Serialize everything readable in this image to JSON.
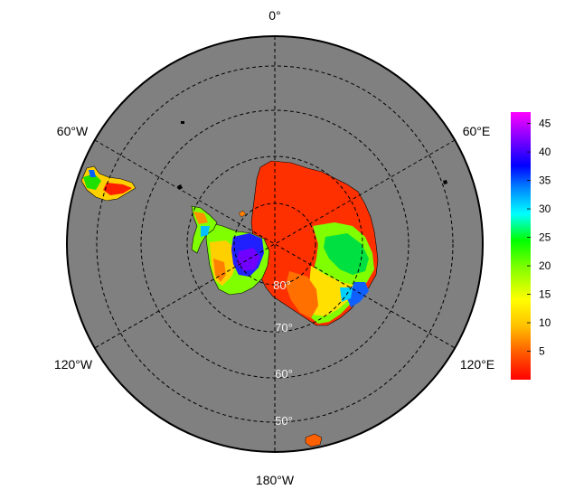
{
  "map": {
    "projection": "south-polar-stereographic",
    "ocean_color": "#808080",
    "grid_style": "dashed-black",
    "longitude_labels": [
      {
        "id": "lon-0",
        "text": "0°"
      },
      {
        "id": "lon-60e",
        "text": "60°E"
      },
      {
        "id": "lon-120e",
        "text": "120°E"
      },
      {
        "id": "lon-180w",
        "text": "180°W"
      },
      {
        "id": "lon-120w",
        "text": "120°W"
      },
      {
        "id": "lon-60w",
        "text": "60°W"
      }
    ],
    "latitude_labels": [
      {
        "id": "lat-80",
        "text": "80°"
      },
      {
        "id": "lat-70",
        "text": "70°"
      },
      {
        "id": "lat-60",
        "text": "60°"
      },
      {
        "id": "lat-50",
        "text": "50°"
      }
    ]
  },
  "colorbar": {
    "min": 0,
    "max": 47,
    "ticks": [
      "5",
      "10",
      "15",
      "20",
      "25",
      "30",
      "35",
      "40",
      "45"
    ],
    "colors": [
      "#ff0000",
      "#ff8000",
      "#ffff00",
      "#00ff00",
      "#00ffff",
      "#0080ff",
      "#0000ff",
      "#8000ff",
      "#ff00ff"
    ]
  }
}
